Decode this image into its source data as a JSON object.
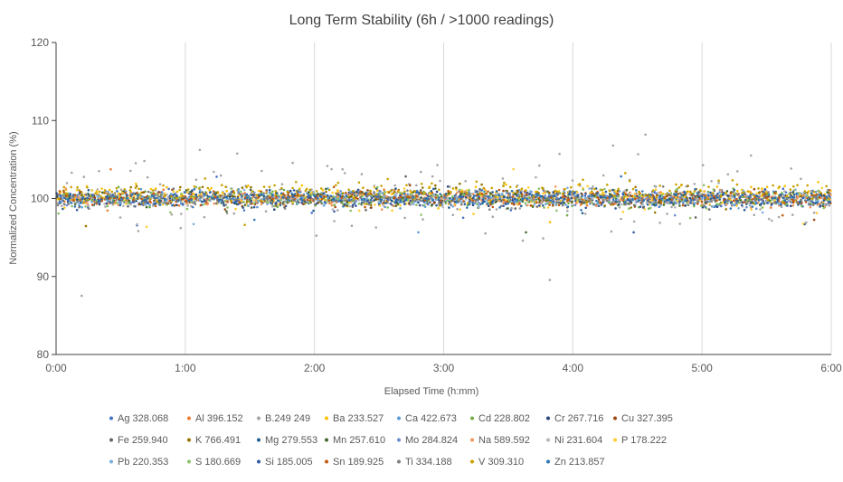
{
  "chart_data": {
    "type": "scatter",
    "title": "Long Term Stability (6h / >1000 readings)",
    "xlabel": "Elapsed Time (h:mm)",
    "ylabel": "Normalized Concentration (%)",
    "x_unit": "hours",
    "xlim": [
      0,
      6
    ],
    "ylim": [
      80,
      120
    ],
    "x_ticks": [
      {
        "value": 0,
        "label": "0:00"
      },
      {
        "value": 1,
        "label": "1:00"
      },
      {
        "value": 2,
        "label": "2:00"
      },
      {
        "value": 3,
        "label": "3:00"
      },
      {
        "value": 4,
        "label": "4:00"
      },
      {
        "value": 5,
        "label": "5:00"
      },
      {
        "value": 6,
        "label": "6:00"
      }
    ],
    "y_ticks": [
      {
        "value": 80,
        "label": "80"
      },
      {
        "value": 90,
        "label": "90"
      },
      {
        "value": 100,
        "label": "100"
      },
      {
        "value": 110,
        "label": "110"
      },
      {
        "value": 120,
        "label": "120"
      }
    ],
    "grid": "vertical",
    "legend_position": "bottom",
    "series": [
      {
        "name": "Ag 328.068",
        "color": "#4472C4",
        "values_summary": {
          "mean": 100.0,
          "typical_min": 98.5,
          "typical_max": 101.5
        }
      },
      {
        "name": "Al 396.152",
        "color": "#ED7D31",
        "values_summary": {
          "mean": 100.0,
          "typical_min": 98.5,
          "typical_max": 101.5
        }
      },
      {
        "name": "B.249 249",
        "color": "#A5A5A5",
        "values_summary": {
          "mean": 100.5,
          "typical_min": 94,
          "typical_max": 107
        }
      },
      {
        "name": "Ba 233.527",
        "color": "#FFC000",
        "values_summary": {
          "mean": 100.5,
          "typical_min": 98.5,
          "typical_max": 102
        }
      },
      {
        "name": "Ca 422.673",
        "color": "#5B9BD5",
        "values_summary": {
          "mean": 100.0,
          "typical_min": 98.5,
          "typical_max": 101.5
        }
      },
      {
        "name": "Cd 228.802",
        "color": "#70AD47",
        "values_summary": {
          "mean": 100.0,
          "typical_min": 98.5,
          "typical_max": 101.5
        }
      },
      {
        "name": "Cr 267.716",
        "color": "#264478",
        "values_summary": {
          "mean": 100.0,
          "typical_min": 98.5,
          "typical_max": 101.5
        }
      },
      {
        "name": "Cu 327.395",
        "color": "#9E480E",
        "values_summary": {
          "mean": 100.0,
          "typical_min": 98.5,
          "typical_max": 101.5
        }
      },
      {
        "name": "Fe 259.940",
        "color": "#636363",
        "values_summary": {
          "mean": 100.0,
          "typical_min": 98.5,
          "typical_max": 101.5
        }
      },
      {
        "name": "K 766.491",
        "color": "#997300",
        "values_summary": {
          "mean": 100.3,
          "typical_min": 98.5,
          "typical_max": 102
        }
      },
      {
        "name": "Mg 279.553",
        "color": "#255E91",
        "values_summary": {
          "mean": 100.0,
          "typical_min": 98.5,
          "typical_max": 101.5
        }
      },
      {
        "name": "Mn 257.610",
        "color": "#43682B",
        "values_summary": {
          "mean": 100.0,
          "typical_min": 98.5,
          "typical_max": 101.5
        }
      },
      {
        "name": "Mo 284.824",
        "color": "#698ED0",
        "values_summary": {
          "mean": 100.0,
          "typical_min": 98.5,
          "typical_max": 101.5
        }
      },
      {
        "name": "Na 589.592",
        "color": "#F1975A",
        "values_summary": {
          "mean": 100.0,
          "typical_min": 98.5,
          "typical_max": 101.5
        }
      },
      {
        "name": "Ni 231.604",
        "color": "#B7B7B7",
        "values_summary": {
          "mean": 100.0,
          "typical_min": 98.5,
          "typical_max": 101.5
        }
      },
      {
        "name": "P 178.222",
        "color": "#FFCD33",
        "values_summary": {
          "mean": 100.0,
          "typical_min": 98,
          "typical_max": 102
        }
      },
      {
        "name": "Pb 220.353",
        "color": "#7CAFDD",
        "values_summary": {
          "mean": 100.0,
          "typical_min": 98.5,
          "typical_max": 101.5
        }
      },
      {
        "name": "S 180.669",
        "color": "#8CC168",
        "values_summary": {
          "mean": 100.0,
          "typical_min": 98,
          "typical_max": 102
        }
      },
      {
        "name": "Si 185.005",
        "color": "#335AA1",
        "values_summary": {
          "mean": 100.0,
          "typical_min": 98.5,
          "typical_max": 101.5
        }
      },
      {
        "name": "Sn 189.925",
        "color": "#C55A11",
        "values_summary": {
          "mean": 100.0,
          "typical_min": 98.5,
          "typical_max": 101.5
        }
      },
      {
        "name": "Ti 334.188",
        "color": "#7F7F7F",
        "values_summary": {
          "mean": 100.0,
          "typical_min": 98.5,
          "typical_max": 101.5
        }
      },
      {
        "name": "V 309.310",
        "color": "#C9A100",
        "values_summary": {
          "mean": 101.0,
          "typical_min": 99,
          "typical_max": 103
        }
      },
      {
        "name": "Zn 213.857",
        "color": "#2F75B5",
        "values_summary": {
          "mean": 100.0,
          "typical_min": 98.5,
          "typical_max": 101.5
        }
      }
    ]
  }
}
